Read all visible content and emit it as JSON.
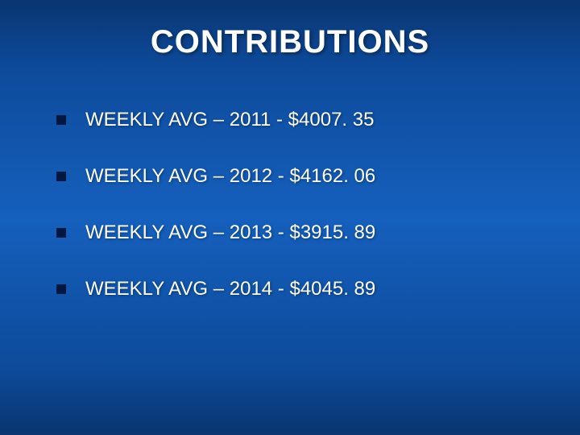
{
  "slide": {
    "title": "CONTRIBUTIONS",
    "background_gradient": [
      "#0a3570",
      "#0d4a9a",
      "#1560bd",
      "#0d4a9a",
      "#0a3570"
    ],
    "title_color": "#ffffff",
    "title_fontsize": 40,
    "body_color": "#ffffff",
    "body_fontsize": 24,
    "bullet_marker_color": "#001840",
    "bullet_marker_size": 12,
    "items": [
      {
        "text": "WEEKLY AVG – 2011 - $4007. 35"
      },
      {
        "text": "WEEKLY AVG – 2012 - $4162. 06"
      },
      {
        "text": "WEEKLY AVG – 2013 - $3915. 89"
      },
      {
        "text": "WEEKLY AVG – 2014 - $4045. 89"
      }
    ]
  }
}
